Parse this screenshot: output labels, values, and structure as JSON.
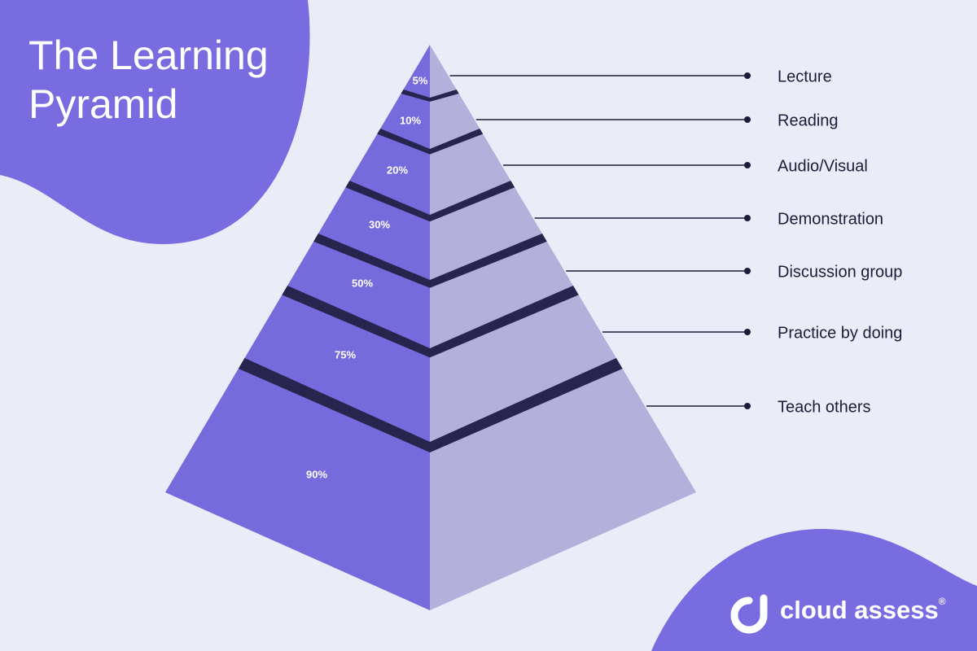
{
  "header": {
    "title": "The Learning Pyramid"
  },
  "levels": [
    {
      "percent": "5%",
      "label": "Lecture"
    },
    {
      "percent": "10%",
      "label": "Reading"
    },
    {
      "percent": "20%",
      "label": "Audio/Visual"
    },
    {
      "percent": "30%",
      "label": "Demonstration"
    },
    {
      "percent": "50%",
      "label": "Discussion group"
    },
    {
      "percent": "75%",
      "label": "Practice by doing"
    },
    {
      "percent": "90%",
      "label": "Teach others"
    }
  ],
  "logo": {
    "text": "cloud assess",
    "mark": "®"
  }
}
